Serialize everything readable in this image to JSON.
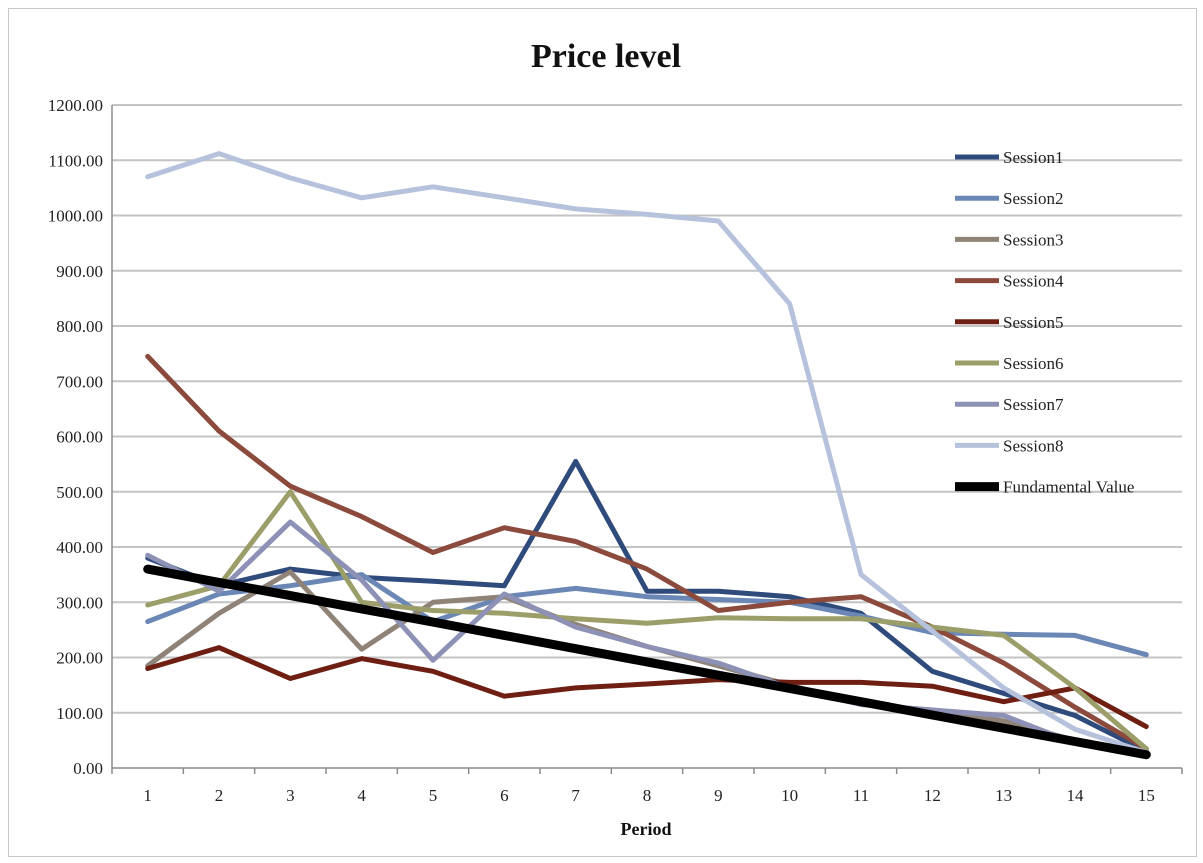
{
  "chart_data": {
    "type": "line",
    "title": "Price level",
    "xlabel": "Period",
    "ylabel": "",
    "ylim": [
      0,
      1200
    ],
    "y_ticks": [
      "0.00",
      "100.00",
      "200.00",
      "300.00",
      "400.00",
      "500.00",
      "600.00",
      "700.00",
      "800.00",
      "900.00",
      "1000.00",
      "1100.00",
      "1200.00"
    ],
    "categories": [
      "1",
      "2",
      "3",
      "4",
      "5",
      "6",
      "7",
      "8",
      "9",
      "10",
      "11",
      "12",
      "13",
      "14",
      "15"
    ],
    "grid": true,
    "legend_position": "right",
    "series": [
      {
        "name": "Session1",
        "color": "#2f4b7c",
        "width": 5,
        "values": [
          380,
          330,
          360,
          345,
          338,
          330,
          555,
          320,
          320,
          310,
          280,
          175,
          135,
          95,
          30
        ]
      },
      {
        "name": "Session2",
        "color": "#6a87b5",
        "width": 5,
        "values": [
          265,
          315,
          330,
          350,
          265,
          310,
          325,
          310,
          305,
          300,
          275,
          245,
          242,
          240,
          205
        ]
      },
      {
        "name": "Session3",
        "color": "#8f8277",
        "width": 5,
        "values": [
          185,
          280,
          355,
          215,
          300,
          310,
          260,
          220,
          185,
          150,
          115,
          105,
          85,
          50,
          30
        ]
      },
      {
        "name": "Session4",
        "color": "#8b4a3c",
        "width": 5,
        "values": [
          745,
          610,
          510,
          455,
          390,
          435,
          410,
          360,
          285,
          300,
          310,
          255,
          190,
          110,
          35
        ]
      },
      {
        "name": "Session5",
        "color": "#6e1f12",
        "width": 5,
        "values": [
          180,
          218,
          162,
          198,
          175,
          130,
          145,
          152,
          160,
          155,
          155,
          148,
          120,
          145,
          75
        ]
      },
      {
        "name": "Session6",
        "color": "#9c9e6a",
        "width": 5,
        "values": [
          295,
          330,
          500,
          300,
          285,
          280,
          270,
          262,
          272,
          270,
          270,
          255,
          240,
          145,
          35
        ]
      },
      {
        "name": "Session7",
        "color": "#8d91b5",
        "width": 5,
        "values": [
          385,
          320,
          445,
          340,
          195,
          315,
          255,
          220,
          190,
          145,
          115,
          105,
          95,
          45,
          25
        ]
      },
      {
        "name": "Session8",
        "color": "#b6c2dc",
        "width": 5,
        "values": [
          1070,
          1112,
          1068,
          1032,
          1052,
          1032,
          1012,
          1002,
          990,
          840,
          350,
          248,
          145,
          70,
          28
        ]
      },
      {
        "name": "Fundamental Value",
        "color": "#000000",
        "width": 9,
        "values": [
          360,
          336,
          312,
          288,
          264,
          240,
          216,
          192,
          168,
          144,
          120,
          96,
          72,
          48,
          24
        ]
      }
    ]
  }
}
